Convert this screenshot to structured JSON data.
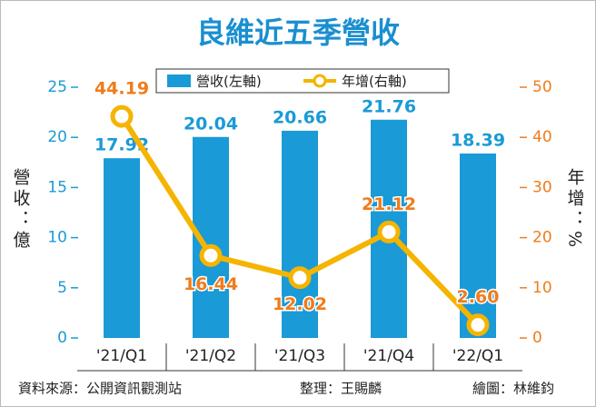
{
  "chart_data": {
    "type": "combo",
    "title": "良維近五季營收",
    "categories": [
      "'21/Q1",
      "'21/Q2",
      "'21/Q3",
      "'21/Q4",
      "'22/Q1"
    ],
    "series": [
      {
        "name": "營收(左軸)",
        "color": "#1a9ad6",
        "kind": "bar",
        "values": [
          17.92,
          20.04,
          20.66,
          21.76,
          18.39
        ]
      },
      {
        "name": "年增(右軸)",
        "color": "#f5b400",
        "kind": "line",
        "axis": "y2",
        "values": [
          44.19,
          16.44,
          12.02,
          21.12,
          2.6
        ],
        "value_labels": [
          "44.19",
          "16.44",
          "12.02",
          "21.12",
          "2.60"
        ],
        "label_color": "#f07c1a"
      }
    ],
    "ylabel": "營收：億",
    "y2label": "年增：%",
    "ylim": [
      0,
      25
    ],
    "yticks": [
      0,
      5,
      10,
      15,
      20,
      25
    ],
    "y2lim": [
      0,
      50
    ],
    "y2ticks": [
      0,
      10,
      20,
      30,
      40,
      50
    ],
    "source": "資料來源：公開資訊觀測站",
    "editor": "整理：王賜麟",
    "illustrator": "繪圖：林維鈞"
  }
}
